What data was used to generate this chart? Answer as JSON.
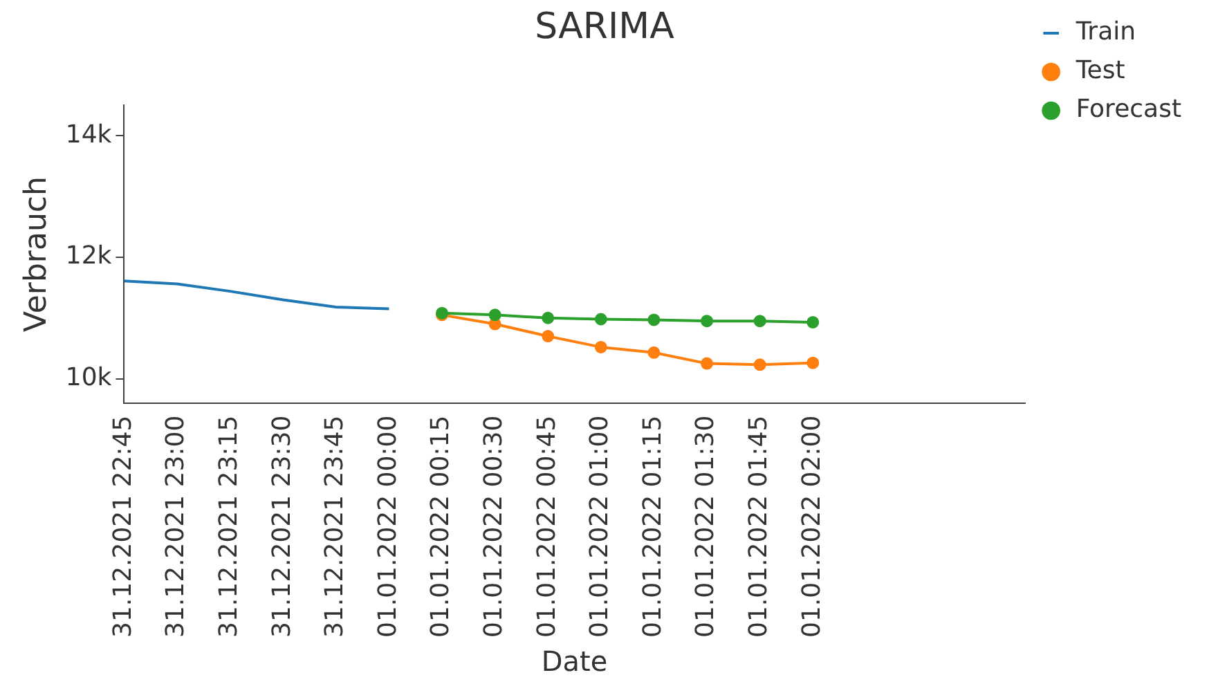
{
  "chart_data": {
    "type": "line",
    "title": "SARIMA",
    "xlabel": "Date",
    "ylabel": "Verbrauch",
    "xlim": [
      "2021-12-31T22:45",
      "2022-01-01T03:00"
    ],
    "xticks": [
      {
        "value": "2021-12-31T22:45",
        "label": "31.12.2021 22:45"
      },
      {
        "value": "2021-12-31T23:00",
        "label": "31.12.2021 23:00"
      },
      {
        "value": "2021-12-31T23:15",
        "label": "31.12.2021 23:15"
      },
      {
        "value": "2021-12-31T23:30",
        "label": "31.12.2021 23:30"
      },
      {
        "value": "2021-12-31T23:45",
        "label": "31.12.2021 23:45"
      },
      {
        "value": "2022-01-01T00:00",
        "label": "01.01.2022 00:00"
      },
      {
        "value": "2022-01-01T00:15",
        "label": "01.01.2022 00:15"
      },
      {
        "value": "2022-01-01T00:30",
        "label": "01.01.2022 00:30"
      },
      {
        "value": "2022-01-01T00:45",
        "label": "01.01.2022 00:45"
      },
      {
        "value": "2022-01-01T01:00",
        "label": "01.01.2022 01:00"
      },
      {
        "value": "2022-01-01T01:15",
        "label": "01.01.2022 01:15"
      },
      {
        "value": "2022-01-01T01:30",
        "label": "01.01.2022 01:30"
      },
      {
        "value": "2022-01-01T01:45",
        "label": "01.01.2022 01:45"
      },
      {
        "value": "2022-01-01T02:00",
        "label": "01.01.2022 02:00"
      }
    ],
    "ylim": [
      9600,
      14500
    ],
    "yticks": [
      {
        "value": 10000,
        "label": "10k"
      },
      {
        "value": 12000,
        "label": "12k"
      },
      {
        "value": 14000,
        "label": "14k"
      }
    ],
    "grid": false,
    "legend": "top right",
    "series": [
      {
        "name": "Train",
        "color": "#1f77b4",
        "marker": "none",
        "x": [
          "2021-12-31T22:45",
          "2021-12-31T23:00",
          "2021-12-31T23:15",
          "2021-12-31T23:30",
          "2021-12-31T23:45",
          "2022-01-01T00:00"
        ],
        "values": [
          11610,
          11560,
          11440,
          11300,
          11180,
          11150
        ]
      },
      {
        "name": "Test",
        "color": "#ff7f0e",
        "marker": "circle",
        "x": [
          "2022-01-01T00:15",
          "2022-01-01T00:30",
          "2022-01-01T00:45",
          "2022-01-01T01:00",
          "2022-01-01T01:15",
          "2022-01-01T01:30",
          "2022-01-01T01:45",
          "2022-01-01T02:00"
        ],
        "values": [
          11050,
          10900,
          10700,
          10520,
          10430,
          10250,
          10230,
          10260
        ]
      },
      {
        "name": "Forecast",
        "color": "#2ca02c",
        "marker": "circle",
        "x": [
          "2022-01-01T00:15",
          "2022-01-01T00:30",
          "2022-01-01T00:45",
          "2022-01-01T01:00",
          "2022-01-01T01:15",
          "2022-01-01T01:30",
          "2022-01-01T01:45",
          "2022-01-01T02:00"
        ],
        "values": [
          11080,
          11050,
          11000,
          10980,
          10970,
          10950,
          10950,
          10930
        ]
      }
    ]
  }
}
